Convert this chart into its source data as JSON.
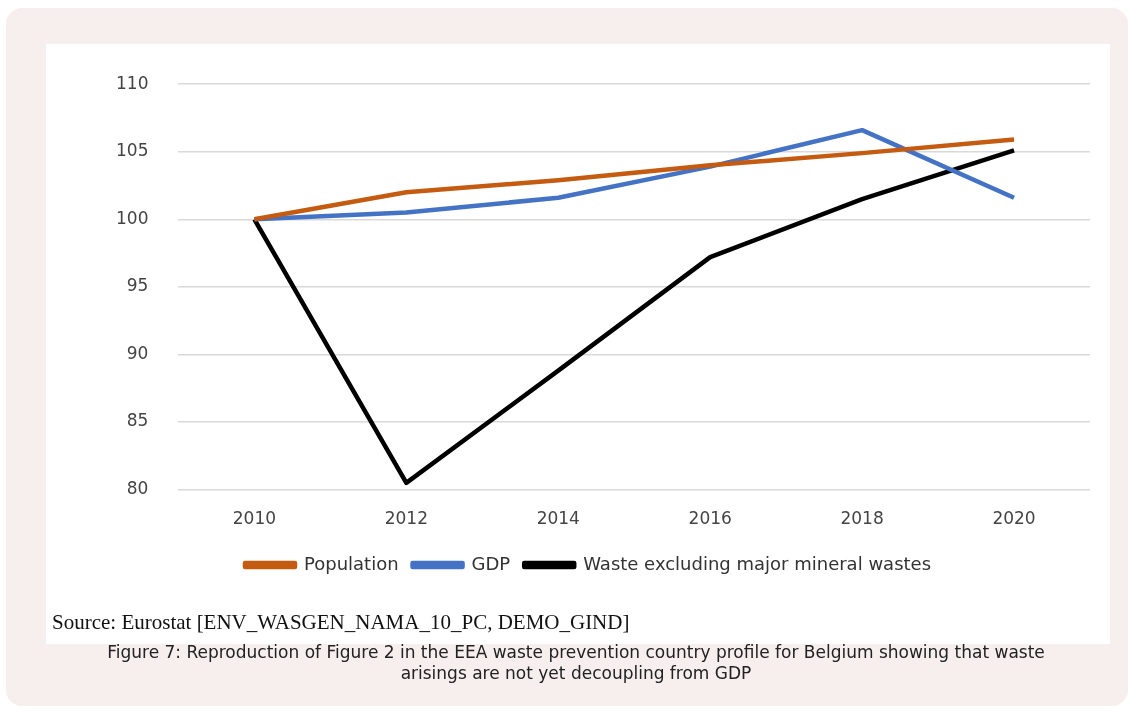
{
  "chart_data": {
    "type": "line",
    "categories": [
      "2010",
      "2012",
      "2014",
      "2016",
      "2018",
      "2020"
    ],
    "series": [
      {
        "name": "Population",
        "color": "#c55a11",
        "values": [
          100,
          102.0,
          102.9,
          104.0,
          104.9,
          105.9
        ]
      },
      {
        "name": "GDP",
        "color": "#4472c4",
        "values": [
          100,
          100.5,
          101.6,
          103.9,
          106.6,
          101.6
        ]
      },
      {
        "name": "Waste excluding major mineral wastes",
        "color": "#000000",
        "values": [
          100,
          80.5,
          88.8,
          97.2,
          101.5,
          105.1
        ]
      }
    ],
    "ylim": [
      80,
      110
    ],
    "yticks": [
      80,
      85,
      90,
      95,
      100,
      105,
      110
    ],
    "grid": "y",
    "legend": "bottom",
    "marker": "none",
    "line_style": "solid",
    "annotations": [
      "Source: Eurostat [ENV_WASGEN_NAMA_10_PC, DEMO_GIND]",
      "Figure 7: Reproduction of Figure 2 in the EEA waste prevention country profile for Belgium showing that waste arisings are not yet decoupling from GDP"
    ]
  }
}
